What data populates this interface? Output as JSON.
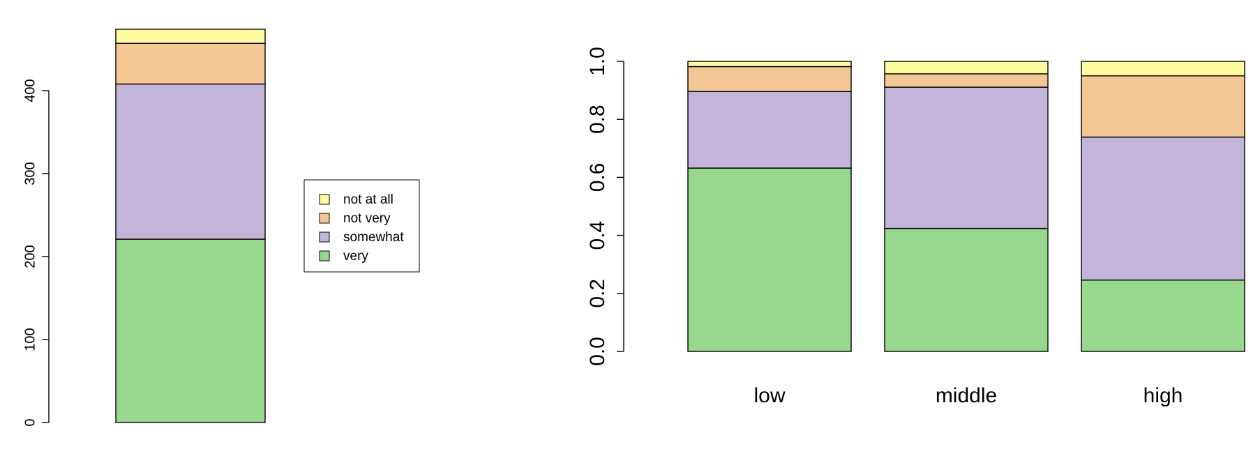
{
  "colors": {
    "very": "#98d78e",
    "somewhat": "#c3b4d9",
    "not very": "#f5c795",
    "not at all": "#fdfaa0",
    "stroke": "#000000",
    "background": "#ffffff"
  },
  "chart_data": [
    {
      "type": "bar",
      "stacked": true,
      "categories": [
        ""
      ],
      "series": [
        {
          "name": "very",
          "values": [
            221
          ]
        },
        {
          "name": "somewhat",
          "values": [
            187
          ]
        },
        {
          "name": "not very",
          "values": [
            49
          ]
        },
        {
          "name": "not at all",
          "values": [
            17
          ]
        }
      ],
      "ylim": [
        0,
        474
      ],
      "yticks": [
        0,
        100,
        200,
        300,
        400
      ],
      "ytick_labels": [
        "0",
        "100",
        "200",
        "300",
        "400"
      ],
      "title": "",
      "xlabel": "",
      "ylabel": "",
      "grid": false,
      "legend": {
        "placement": "right",
        "entries": [
          "not at all",
          "not very",
          "somewhat",
          "very"
        ]
      }
    },
    {
      "type": "bar",
      "stacked": true,
      "categories": [
        "low",
        "middle",
        "high"
      ],
      "series": [
        {
          "name": "very",
          "values": [
            0.632,
            0.424,
            0.246
          ]
        },
        {
          "name": "somewhat",
          "values": [
            0.264,
            0.487,
            0.493
          ]
        },
        {
          "name": "not very",
          "values": [
            0.086,
            0.046,
            0.211
          ]
        },
        {
          "name": "not at all",
          "values": [
            0.018,
            0.043,
            0.05
          ]
        }
      ],
      "ylim": [
        0,
        1
      ],
      "yticks": [
        0,
        0.2,
        0.4,
        0.6,
        0.8,
        1.0
      ],
      "ytick_labels": [
        "0.0",
        "0.2",
        "0.4",
        "0.6",
        "0.8",
        "1.0"
      ],
      "title": "",
      "xlabel": "",
      "ylabel": "",
      "grid": false
    }
  ]
}
